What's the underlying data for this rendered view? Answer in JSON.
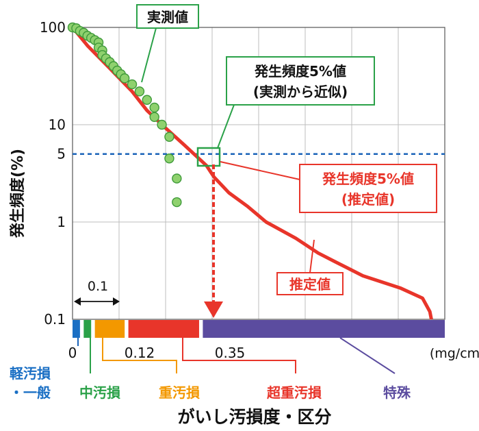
{
  "chart_data": {
    "type": "line",
    "title": "",
    "xlabel": "がいし汚損度・区分",
    "ylabel": "発生頻度(%)",
    "x_unit": "(mg/cm²)",
    "y_scale": "log",
    "ylim": [
      0.1,
      100
    ],
    "xlim": [
      0,
      0.5
    ],
    "grid": true,
    "y_ticks": [
      "0.1",
      "1",
      "5",
      "10",
      "100"
    ],
    "x_ticks": [
      "0",
      "0.12",
      "0.35"
    ],
    "interval_label": "0.1",
    "series": [
      {
        "name": "推定値",
        "color": "#e8352a",
        "x": [
          0,
          0.02,
          0.05,
          0.08,
          0.1,
          0.12,
          0.15,
          0.18,
          0.19,
          0.21,
          0.235,
          0.26,
          0.3,
          0.33,
          0.35,
          0.39,
          0.44,
          0.47,
          0.48,
          0.482
        ],
        "y": [
          100,
          65,
          38,
          22,
          14,
          10,
          6.2,
          3.8,
          2.9,
          2.0,
          1.45,
          1.0,
          0.68,
          0.48,
          0.4,
          0.28,
          0.21,
          0.165,
          0.12,
          0.1
        ]
      },
      {
        "name": "実測値",
        "color": "#8fd16e",
        "x": [
          0,
          0.005,
          0.01,
          0.015,
          0.02,
          0.025,
          0.03,
          0.035,
          0.035,
          0.04,
          0.04,
          0.045,
          0.05,
          0.055,
          0.06,
          0.065,
          0.07,
          0.08,
          0.09,
          0.1,
          0.11,
          0.11,
          0.12,
          0.13,
          0.13,
          0.14,
          0.14
        ],
        "y": [
          100,
          98,
          92,
          88,
          82,
          78,
          74,
          70,
          62,
          58,
          52,
          48,
          44,
          40,
          36,
          33,
          30,
          26,
          22,
          18,
          15,
          12,
          10,
          7.5,
          4.5,
          2.8,
          1.6
        ]
      }
    ],
    "reference_line": {
      "y": 5,
      "style": "dashed",
      "color": "#1a63b8"
    },
    "categories": [
      {
        "label": "軽汚損・一般",
        "color": "#1a6fc4",
        "range": [
          0,
          0.01
        ]
      },
      {
        "label": "中汚損",
        "color": "#2aa148",
        "range": [
          0.015,
          0.025
        ]
      },
      {
        "label": "重汚損",
        "color": "#f39800",
        "range": [
          0.03,
          0.07
        ]
      },
      {
        "label": "超重汚損",
        "color": "#e8352a",
        "range": [
          0.075,
          0.17
        ]
      },
      {
        "label": "特殊",
        "color": "#5b4c9f",
        "range": [
          0.175,
          0.5
        ]
      }
    ],
    "annotations": {
      "measured": "実測値",
      "measured_5pct": [
        "発生頻度5%値",
        "(実測から近似)"
      ],
      "estimated_5pct": [
        "発生頻度5%値",
        "(推定値)"
      ],
      "estimated": "推定値"
    }
  }
}
